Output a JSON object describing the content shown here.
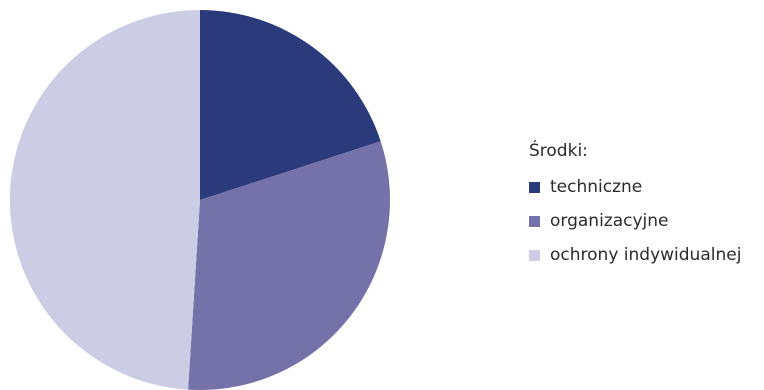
{
  "chart_data": {
    "type": "pie",
    "title": "",
    "legend": {
      "title": "Środki:",
      "placement": "right"
    },
    "series": [
      {
        "name": "techniczne",
        "value": 20,
        "color": "#2b3a7a"
      },
      {
        "name": "organizacyjne",
        "value": 31,
        "color": "#7472a8"
      },
      {
        "name": "ochrony indywidualnej",
        "value": 49,
        "color": "#cccce4"
      }
    ]
  }
}
